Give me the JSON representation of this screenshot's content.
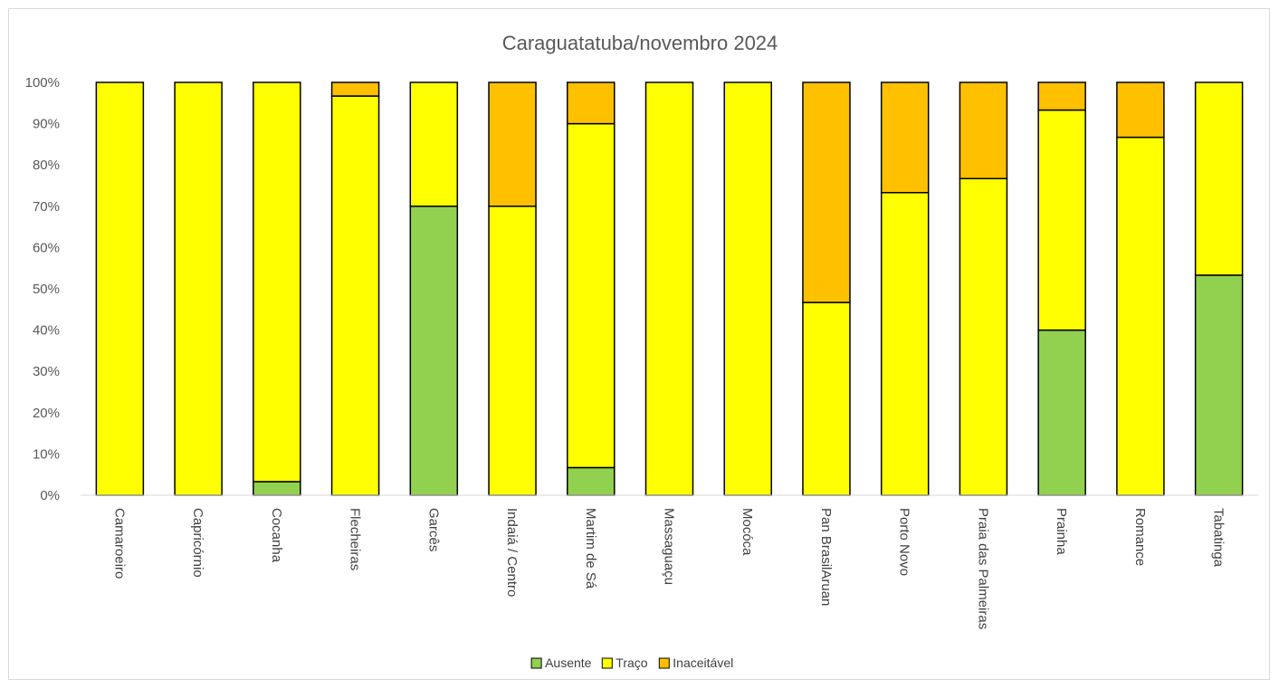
{
  "chart_data": {
    "type": "bar",
    "stacked": true,
    "percent_stacked": true,
    "title": "Caraguatatuba/novembro 2024",
    "xlabel": "",
    "ylabel": "",
    "ylim": [
      0,
      100
    ],
    "y_ticks": [
      "0%",
      "10%",
      "20%",
      "30%",
      "40%",
      "50%",
      "60%",
      "70%",
      "80%",
      "90%",
      "100%"
    ],
    "grid": false,
    "legend_position": "bottom",
    "categories": [
      "Camaroeiro",
      "Capricórnio",
      "Cocanha",
      "Flecheiras",
      "Garcês",
      "Indaiá / Centro",
      "Martim de Sá",
      "Massaguaçu",
      "Mocóca",
      "Pan BrasilAruan",
      "Porto Novo",
      "Praia das Palmeiras",
      "Prainha",
      "Romance",
      "Tabatinga"
    ],
    "series": [
      {
        "name": "Ausente",
        "color": "#92d050",
        "values": [
          0,
          0,
          3.3,
          0,
          70,
          0,
          6.7,
          0,
          0,
          0,
          0,
          0,
          40,
          0,
          53.3
        ]
      },
      {
        "name": "Traço",
        "color": "#ffff00",
        "values": [
          100,
          100,
          96.7,
          96.7,
          30,
          70,
          83.3,
          100,
          100,
          46.7,
          73.3,
          76.7,
          53.3,
          86.7,
          46.7
        ]
      },
      {
        "name": "Inaceitável",
        "color": "#ffc000",
        "values": [
          0,
          0,
          0,
          3.3,
          0,
          30,
          10,
          0,
          0,
          53.3,
          26.7,
          23.3,
          6.7,
          13.3,
          0
        ]
      }
    ]
  }
}
